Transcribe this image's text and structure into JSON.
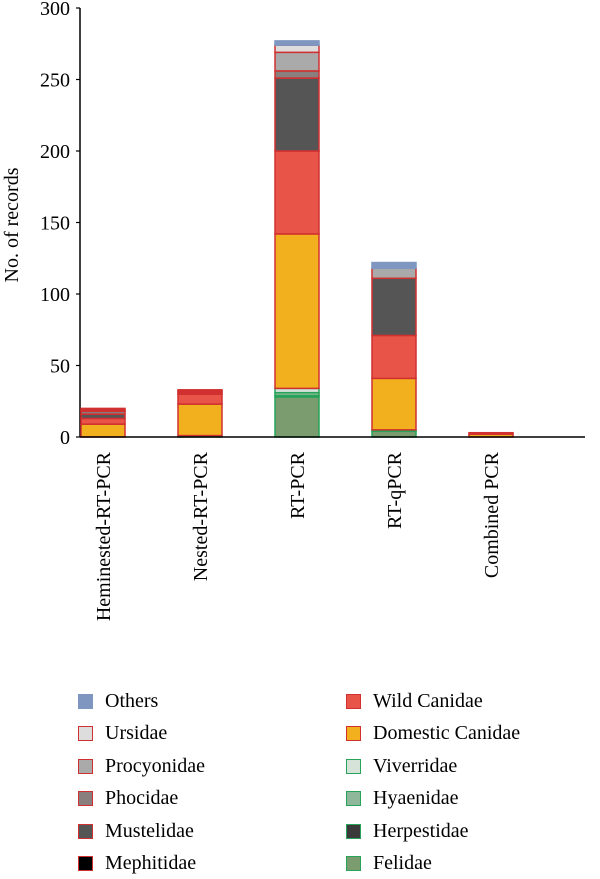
{
  "chart_data": {
    "type": "bar",
    "stacked": true,
    "ylabel": "No. of records",
    "ylim": [
      0,
      300
    ],
    "yticks": [
      0,
      50,
      100,
      150,
      200,
      250,
      300
    ],
    "categories": [
      "Heminested-RT-PCR",
      "Nested-RT-PCR",
      "RT-PCR",
      "RT-qPCR",
      "Combined PCR"
    ],
    "series": [
      {
        "name": "Felidae",
        "color": "#7a9c6e",
        "edge": "#27a35a",
        "values": [
          0,
          1,
          28,
          4,
          0
        ]
      },
      {
        "name": "Herpestidae",
        "color": "#3a3a3a",
        "edge": "#27a35a",
        "values": [
          0,
          0,
          1,
          0,
          0
        ]
      },
      {
        "name": "Hyaenidae",
        "color": "#8fb89a",
        "edge": "#27a35a",
        "values": [
          0,
          0,
          2,
          0,
          0
        ]
      },
      {
        "name": "Viverridae",
        "color": "#d6e3d8",
        "edge": "#27a35a",
        "values": [
          0,
          0,
          3,
          1,
          0
        ]
      },
      {
        "name": "Domestic Canidae",
        "color": "#f2b01e",
        "edge": "#d03030",
        "values": [
          9,
          22,
          108,
          36,
          2
        ]
      },
      {
        "name": "Wild Canidae",
        "color": "#e85448",
        "edge": "#d03030",
        "values": [
          4,
          7,
          58,
          30,
          1
        ]
      },
      {
        "name": "Mephitidae",
        "color": "#000000",
        "edge": "#d03030",
        "values": [
          0,
          0,
          0,
          0,
          0
        ]
      },
      {
        "name": "Mustelidae",
        "color": "#555555",
        "edge": "#d03030",
        "values": [
          3,
          1,
          51,
          40,
          0
        ]
      },
      {
        "name": "Phocidae",
        "color": "#8a7f7f",
        "edge": "#d03030",
        "values": [
          2,
          1,
          5,
          0,
          0
        ]
      },
      {
        "name": "Procyonidae",
        "color": "#aaaaaa",
        "edge": "#d03030",
        "values": [
          1,
          1,
          13,
          7,
          0
        ]
      },
      {
        "name": "Ursidae",
        "color": "#dddddd",
        "edge": "#d03030",
        "values": [
          1,
          0,
          5,
          0,
          0
        ]
      },
      {
        "name": "Others",
        "color": "#7f96c0",
        "edge": "#7f96c0",
        "values": [
          0,
          0,
          3,
          4,
          0
        ]
      }
    ],
    "legend": {
      "left": [
        "Others",
        "Ursidae",
        "Procyonidae",
        "Phocidae",
        "Mustelidae",
        "Mephitidae"
      ],
      "right": [
        "Wild Canidae",
        "Domestic Canidae",
        "Viverridae",
        "Hyaenidae",
        "Herpestidae",
        "Felidae"
      ]
    }
  }
}
